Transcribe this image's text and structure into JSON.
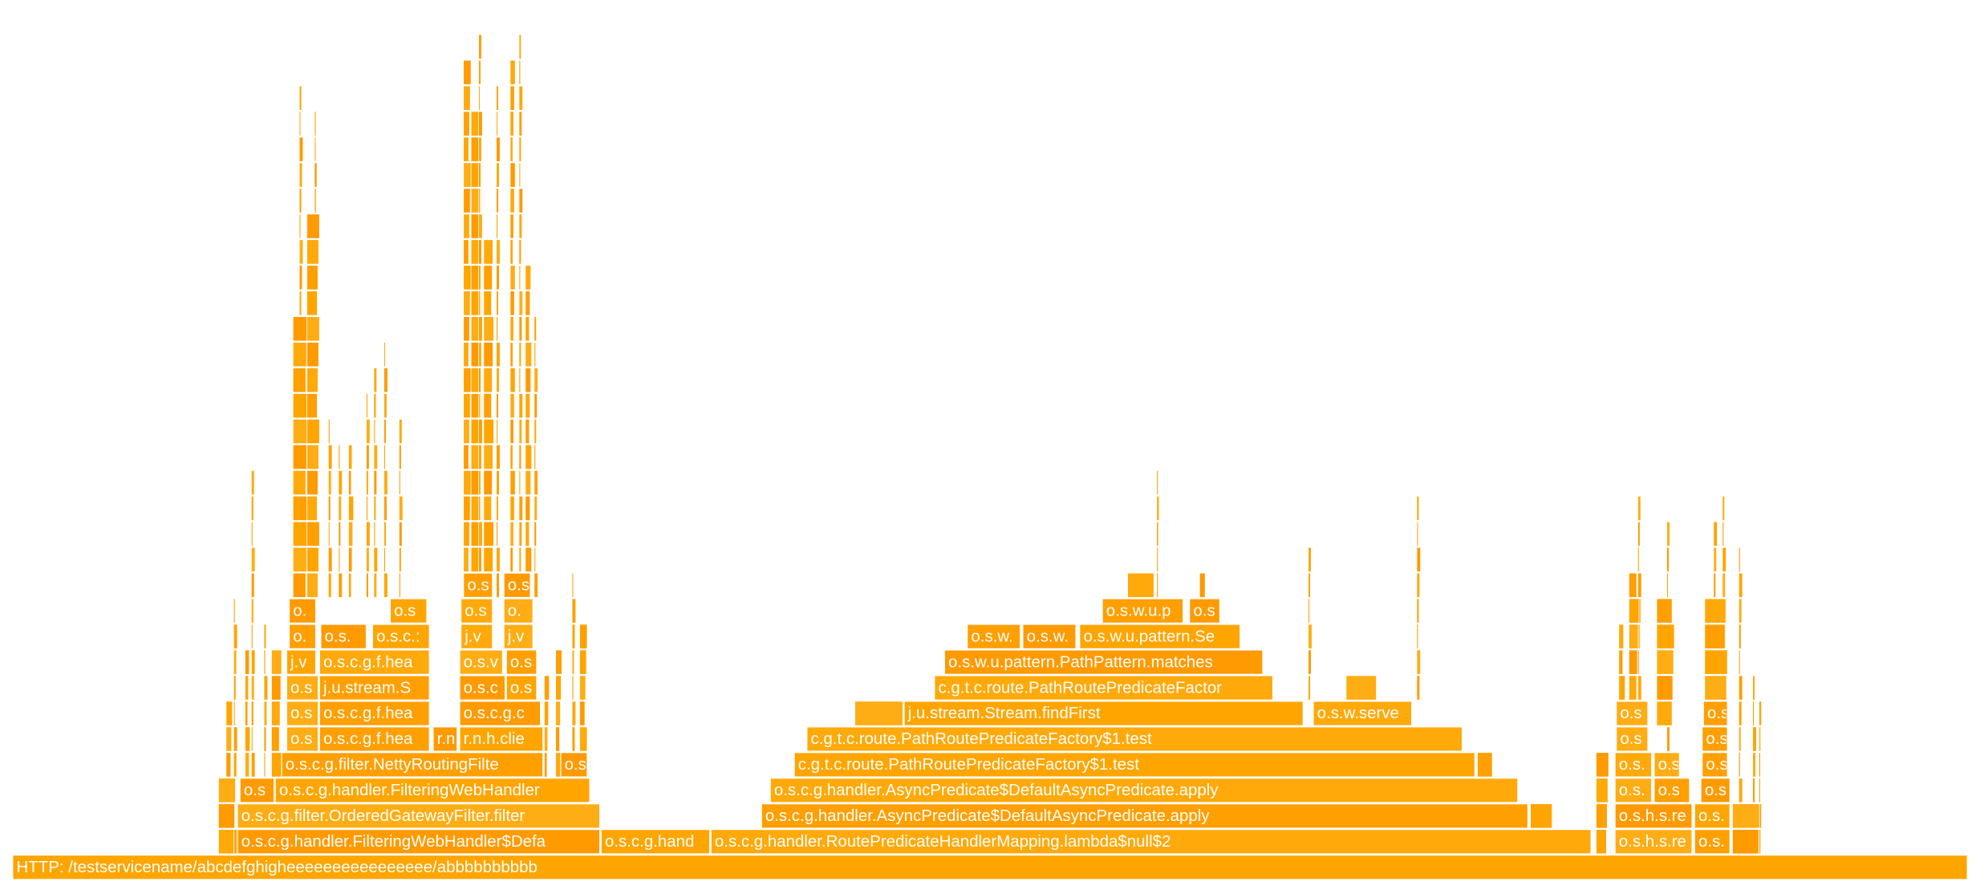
{
  "frames": [
    {
      "label": "HTTP: /testservicename/abcdefghigheeeeeeeeeeeeeeee/abbbbbbbbbb"
    },
    {
      "label": "o.s.c.g.handler.FilteringWebHandler$Defa"
    },
    {
      "label": "o.s.c.g.hand"
    },
    {
      "label": "o.s.c.g.handler.RoutePredicateHandlerMapping.lambda$null$2"
    },
    {
      "label": "o.s.h.s.re"
    },
    {
      "label": "o.s."
    },
    {
      "label": "o.s.c.g.filter.OrderedGatewayFilter.filter"
    },
    {
      "label": "o.s.c.g.handler.AsyncPredicate$DefaultAsyncPredicate.apply"
    },
    {
      "label": "o.s.h.s.re"
    },
    {
      "label": "o.s."
    },
    {
      "label": "o.s"
    },
    {
      "label": "o.s.c.g.handler.FilteringWebHandler"
    },
    {
      "label": "o.s.c.g.handler.AsyncPredicate$DefaultAsyncPredicate.apply"
    },
    {
      "label": "o.s."
    },
    {
      "label": "o.s"
    },
    {
      "label": "o.s"
    },
    {
      "label": "o.s.c.g.filter.NettyRoutingFilte"
    },
    {
      "label": "o.s"
    },
    {
      "label": "c.g.t.c.route.PathRoutePredicateFactory$1.test"
    },
    {
      "label": "o.s."
    },
    {
      "label": "o.s"
    },
    {
      "label": "o.s"
    },
    {
      "label": "o.s"
    },
    {
      "label": "o.s.c.g.f.hea"
    },
    {
      "label": "r.n"
    },
    {
      "label": "r.n.h.clie"
    },
    {
      "label": "c.g.t.c.route.PathRoutePredicateFactory$1.test"
    },
    {
      "label": "o.s"
    },
    {
      "label": "o.s"
    },
    {
      "label": "o.s"
    },
    {
      "label": "o.s.c.g.f.hea"
    },
    {
      "label": "o.s.c.g.c"
    },
    {
      "label": "j.u.stream.Stream.findFirst"
    },
    {
      "label": "o.s.w.serve"
    },
    {
      "label": "o.s"
    },
    {
      "label": "o.s"
    },
    {
      "label": "o.s"
    },
    {
      "label": "j.u.stream.S"
    },
    {
      "label": "o.s.c"
    },
    {
      "label": "o.s"
    },
    {
      "label": "c.g.t.c.route.PathRoutePredicateFactor"
    },
    {
      "label": "j.v"
    },
    {
      "label": "o.s.c.g.f.hea"
    },
    {
      "label": "o.s.v"
    },
    {
      "label": "o.s"
    },
    {
      "label": "o.s.w.u.pattern.PathPattern.matches"
    },
    {
      "label": "o."
    },
    {
      "label": "o.s."
    },
    {
      "label": "o.s.c.:"
    },
    {
      "label": "j.v"
    },
    {
      "label": "j.v"
    },
    {
      "label": "o.s.w."
    },
    {
      "label": "o.s.w."
    },
    {
      "label": "o.s.w.u.pattern.Se"
    },
    {
      "label": "o."
    },
    {
      "label": "o.s"
    },
    {
      "label": "o.s"
    },
    {
      "label": "o."
    },
    {
      "label": "o.s.w.u.p"
    },
    {
      "label": "o.s"
    },
    {
      "label": "o.s"
    },
    {
      "label": "o.s"
    }
  ]
}
